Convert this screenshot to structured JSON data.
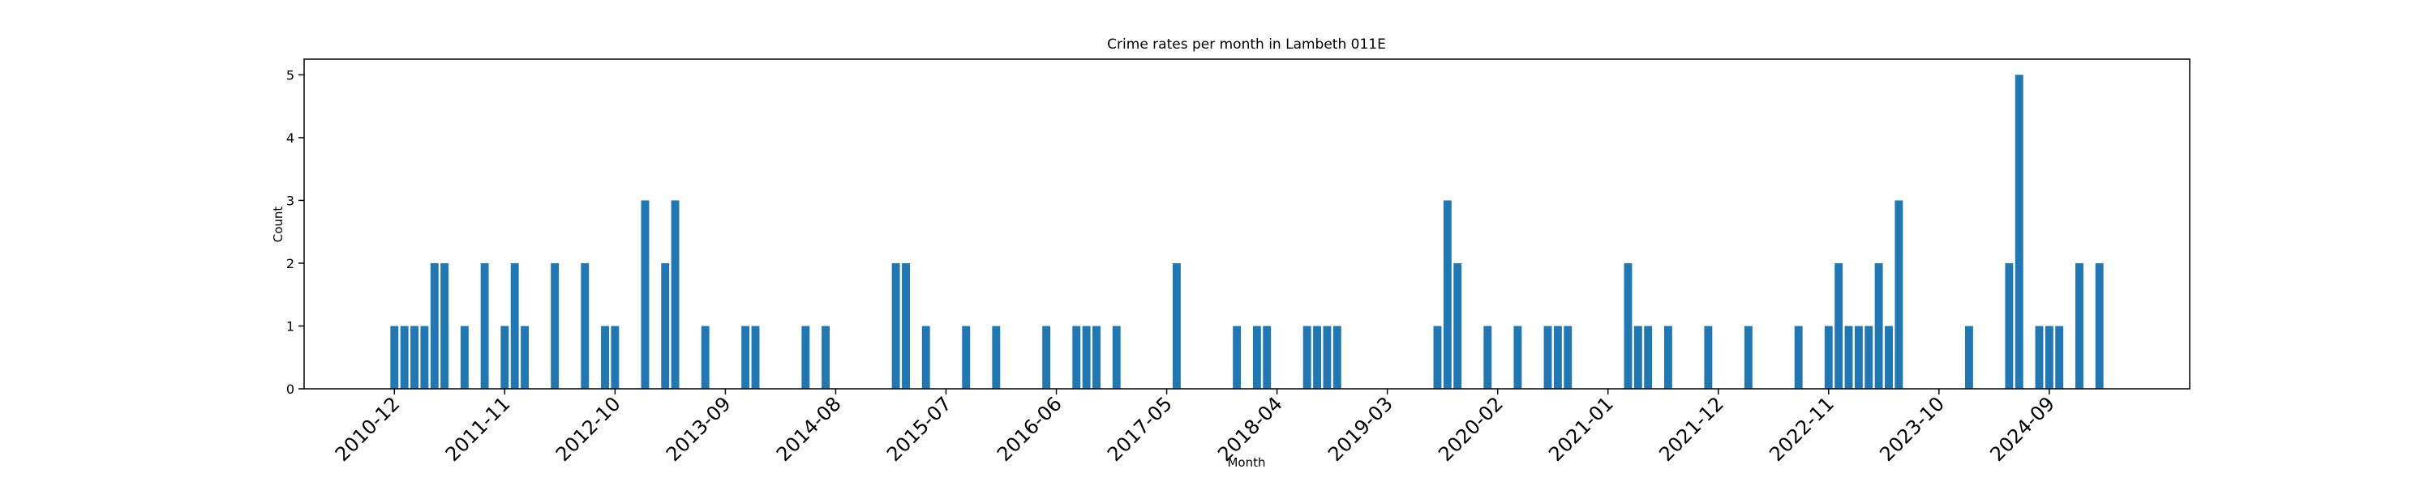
{
  "chart_data": {
    "type": "bar",
    "title": "Crime rates per month in Lambeth 011E",
    "xlabel": "Month",
    "ylabel": "Count",
    "color": "#1f77b4",
    "x": [
      "2010-12",
      "2011-01",
      "2011-02",
      "2011-03",
      "2011-04",
      "2011-05",
      "2011-07",
      "2011-09",
      "2011-11",
      "2011-12",
      "2012-01",
      "2012-04",
      "2012-07",
      "2012-09",
      "2012-10",
      "2013-01",
      "2013-03",
      "2013-04",
      "2013-07",
      "2013-11",
      "2013-12",
      "2014-05",
      "2014-07",
      "2015-02",
      "2015-03",
      "2015-05",
      "2015-09",
      "2015-12",
      "2016-05",
      "2016-08",
      "2016-09",
      "2016-10",
      "2016-12",
      "2017-06",
      "2017-12",
      "2018-02",
      "2018-03",
      "2018-07",
      "2018-08",
      "2018-09",
      "2018-10",
      "2019-08",
      "2019-09",
      "2019-10",
      "2020-01",
      "2020-04",
      "2020-07",
      "2020-08",
      "2020-09",
      "2021-03",
      "2021-04",
      "2021-05",
      "2021-07",
      "2021-11",
      "2022-03",
      "2022-08",
      "2022-11",
      "2022-12",
      "2023-01",
      "2023-02",
      "2023-03",
      "2023-04",
      "2023-05",
      "2023-06",
      "2024-01",
      "2024-05",
      "2024-06",
      "2024-08",
      "2024-09",
      "2024-10",
      "2024-12",
      "2025-02"
    ],
    "values": [
      1,
      1,
      1,
      1,
      2,
      2,
      1,
      2,
      1,
      2,
      1,
      2,
      2,
      1,
      1,
      3,
      2,
      3,
      1,
      1,
      1,
      1,
      1,
      2,
      2,
      1,
      1,
      1,
      1,
      1,
      1,
      1,
      1,
      2,
      1,
      1,
      1,
      1,
      1,
      1,
      1,
      1,
      3,
      2,
      1,
      1,
      1,
      1,
      1,
      2,
      1,
      1,
      1,
      1,
      1,
      1,
      1,
      2,
      1,
      1,
      1,
      2,
      1,
      3,
      1,
      2,
      5,
      1,
      1,
      1,
      2,
      2
    ],
    "xlim": [
      "2010-03",
      "2025-11"
    ],
    "xticks": [
      "2010-12",
      "2011-11",
      "2012-10",
      "2013-09",
      "2014-08",
      "2015-07",
      "2016-06",
      "2017-05",
      "2018-04",
      "2019-03",
      "2020-02",
      "2021-01",
      "2021-12",
      "2022-11",
      "2023-10",
      "2024-09"
    ],
    "ylim": [
      0,
      5.25
    ],
    "yticks": [
      0,
      1,
      2,
      3,
      4,
      5
    ]
  }
}
